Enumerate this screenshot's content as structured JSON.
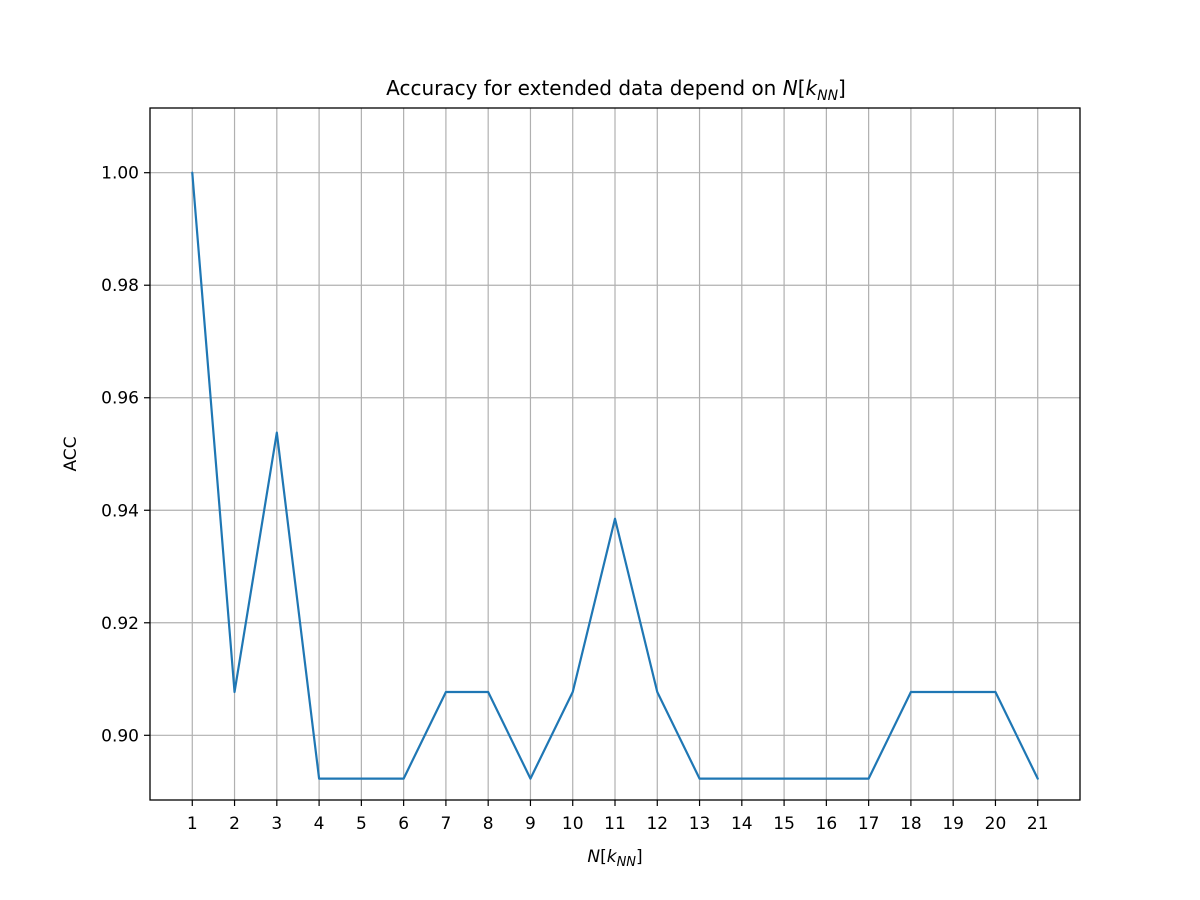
{
  "chart_data": {
    "type": "line",
    "title": {
      "prefix": "Accuracy for extended data depend on ",
      "math_base": "N",
      "math_open": "[",
      "math_var": "k",
      "math_sub": "NN",
      "math_close": "]"
    },
    "xlabel": {
      "math_base": "N",
      "math_open": "[",
      "math_var": "k",
      "math_sub": "NN",
      "math_close": "]"
    },
    "ylabel": "ACC",
    "x": [
      1,
      2,
      3,
      4,
      5,
      6,
      7,
      8,
      9,
      10,
      11,
      12,
      13,
      14,
      15,
      16,
      17,
      18,
      19,
      20,
      21
    ],
    "series": [
      {
        "values": [
          1.0,
          0.9077,
          0.9538,
          0.8923,
          0.8923,
          0.8923,
          0.9077,
          0.9077,
          0.8923,
          0.9077,
          0.9385,
          0.9077,
          0.8923,
          0.8923,
          0.8923,
          0.8923,
          0.8923,
          0.9077,
          0.9077,
          0.9077,
          0.8923
        ],
        "color": "#1f77b4"
      }
    ],
    "xlim": [
      0,
      22
    ],
    "ylim": [
      0.8885,
      1.0115
    ],
    "xticks": [
      1,
      2,
      3,
      4,
      5,
      6,
      7,
      8,
      9,
      10,
      11,
      12,
      13,
      14,
      15,
      16,
      17,
      18,
      19,
      20,
      21
    ],
    "yticks": [
      0.9,
      0.92,
      0.94,
      0.96,
      0.98,
      1.0
    ],
    "ytick_labels": [
      "0.90",
      "0.92",
      "0.94",
      "0.96",
      "0.98",
      "1.00"
    ],
    "grid": true,
    "grid_color": "#b0b0b0",
    "legend": "none"
  }
}
